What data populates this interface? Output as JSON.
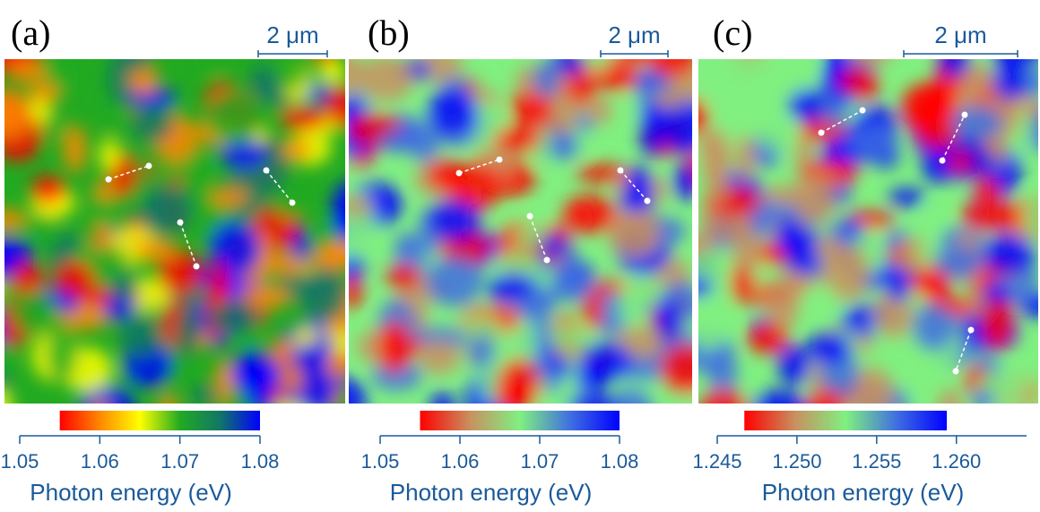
{
  "panels": [
    {
      "label": "(a)",
      "scale_bar": "2 μm",
      "colorbar": {
        "colors": [
          "#ff0000",
          "#ff8800",
          "#ffff00",
          "#22aa22",
          "#117766",
          "#0000ff"
        ],
        "gradient_range": [
          1.055,
          1.08
        ],
        "xlim": [
          1.05,
          1.08
        ],
        "xticks": [
          1.05,
          1.06,
          1.07,
          1.08
        ],
        "xlabel": "Photon energy (eV)"
      }
    },
    {
      "label": "(b)",
      "scale_bar": "2 μm",
      "colorbar": {
        "colors": [
          "#ff0000",
          "#c89060",
          "#80f080",
          "#4070e0",
          "#0000ff"
        ],
        "gradient_range": [
          1.055,
          1.08
        ],
        "xlim": [
          1.05,
          1.08
        ],
        "xticks": [
          1.05,
          1.06,
          1.07,
          1.08
        ],
        "xlabel": "Photon energy (eV)"
      }
    },
    {
      "label": "(c)",
      "scale_bar": "2 μm",
      "colorbar": {
        "colors": [
          "#ff0000",
          "#c89060",
          "#80f080",
          "#4070e0",
          "#0000ff"
        ],
        "gradient_range": [
          1.2467,
          1.2594
        ],
        "xlim": [
          1.245,
          1.2644
        ],
        "xticks": [
          {
            "value": 1.245,
            "label": "1.245"
          },
          {
            "value": 1.25,
            "label": "1.250"
          },
          {
            "value": 1.255,
            "label": "1.255"
          },
          {
            "value": 1.26,
            "label": "1.260"
          }
        ],
        "xlabel": "Photon energy (eV)"
      }
    }
  ]
}
